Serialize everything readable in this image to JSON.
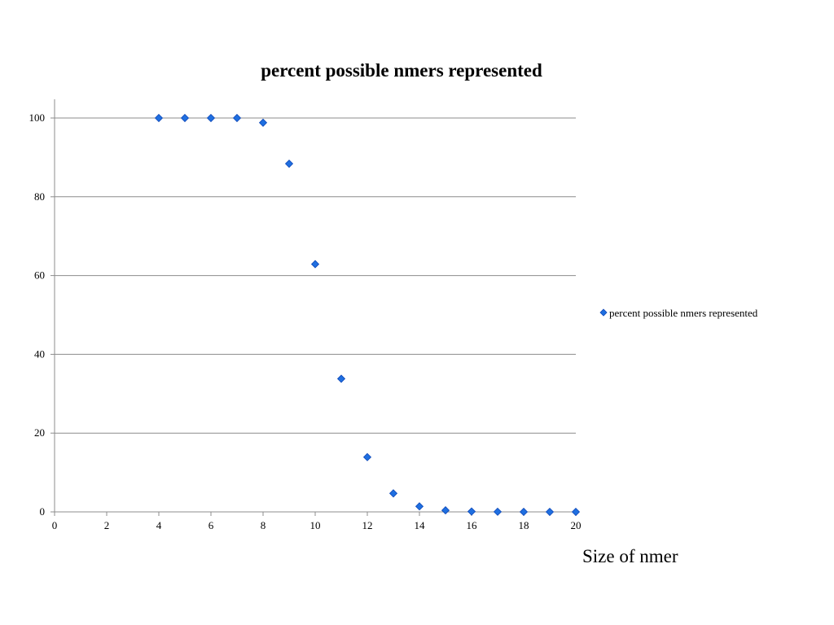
{
  "chart_data": {
    "type": "scatter",
    "title": "percent possible nmers represented",
    "xlabel": "Size of nmer",
    "ylabel": "",
    "xlim": [
      0,
      20
    ],
    "ylim": [
      0,
      105
    ],
    "xticks": [
      0,
      2,
      4,
      6,
      8,
      10,
      12,
      14,
      16,
      18,
      20
    ],
    "yticks": [
      0,
      20,
      40,
      60,
      80,
      100
    ],
    "grid": "horizontal",
    "legend_position": "right",
    "series": [
      {
        "name": "percent possible nmers represented",
        "color": "#1f6fe0",
        "marker": "diamond",
        "points": [
          {
            "x": 4,
            "y": 100
          },
          {
            "x": 5,
            "y": 100
          },
          {
            "x": 6,
            "y": 100
          },
          {
            "x": 7,
            "y": 100
          },
          {
            "x": 8,
            "y": 98.8
          },
          {
            "x": 9,
            "y": 88.4
          },
          {
            "x": 10,
            "y": 62.9
          },
          {
            "x": 11,
            "y": 33.8
          },
          {
            "x": 12,
            "y": 13.9
          },
          {
            "x": 13,
            "y": 4.7
          },
          {
            "x": 14,
            "y": 1.4
          },
          {
            "x": 15,
            "y": 0.4
          },
          {
            "x": 16,
            "y": 0.1
          },
          {
            "x": 17,
            "y": 0.03
          },
          {
            "x": 18,
            "y": 0.01
          },
          {
            "x": 19,
            "y": 0
          },
          {
            "x": 20,
            "y": 0
          }
        ]
      }
    ]
  }
}
